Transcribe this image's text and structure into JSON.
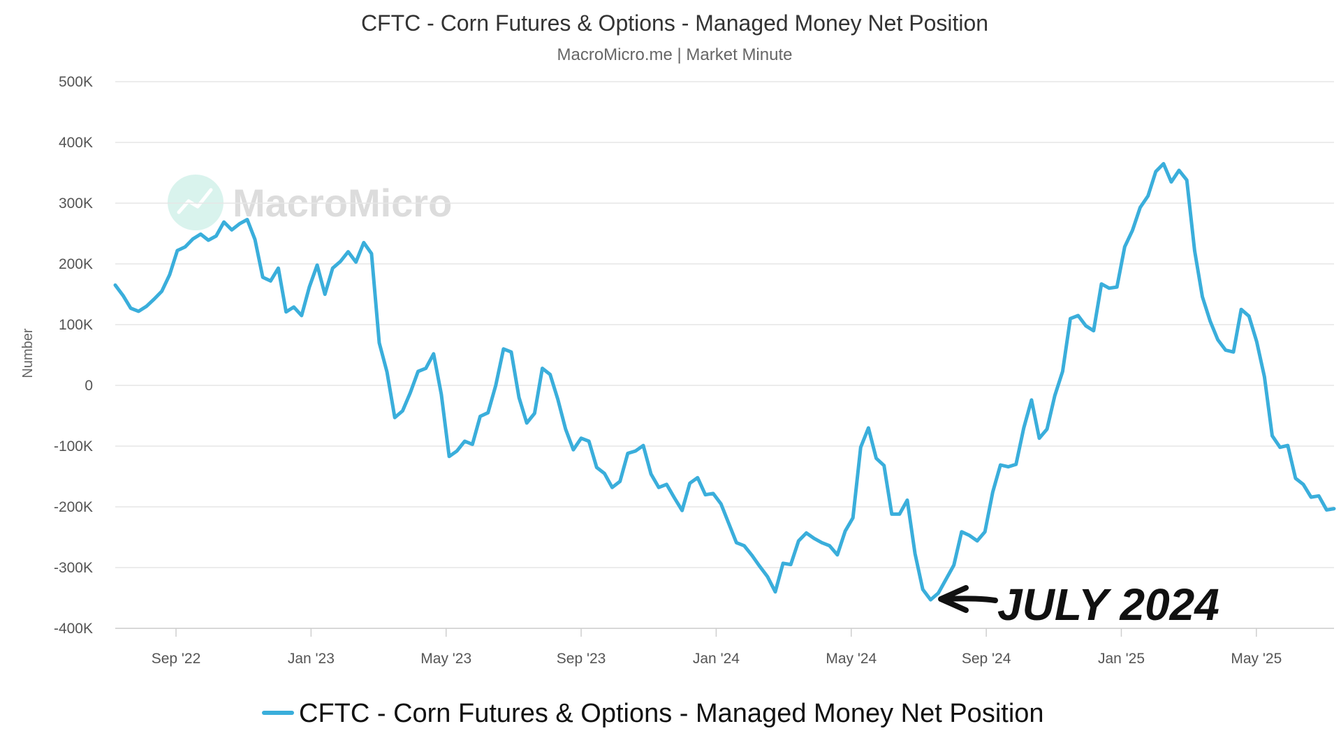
{
  "chart_data": {
    "type": "line",
    "title": "CFTC - Corn Futures & Options - Managed Money Net Position",
    "subtitle": "MacroMicro.me | Market Minute",
    "ylabel": "Number",
    "xlabel": "",
    "ylim": [
      -400000,
      500000
    ],
    "yticks": [
      500000,
      400000,
      300000,
      200000,
      100000,
      0,
      -100000,
      -200000,
      -300000,
      -400000
    ],
    "ytick_labels": [
      "500K",
      "400K",
      "300K",
      "200K",
      "100K",
      "0",
      "-100K",
      "-200K",
      "-300K",
      "-400K"
    ],
    "xlim": [
      0,
      36.1
    ],
    "xticks": [
      1.8,
      5.8,
      9.8,
      13.8,
      17.8,
      21.8,
      25.8,
      29.8,
      33.8
    ],
    "xtick_labels": [
      "Sep '22",
      "Jan '23",
      "May '23",
      "Sep '23",
      "Jan '24",
      "May '24",
      "Sep '24",
      "Jan '25",
      "May '25"
    ],
    "grid": true,
    "legend": "bottom-center",
    "series": [
      {
        "name": "CFTC - Corn Futures & Options - Managed Money Net Position",
        "color": "#3aaedb",
        "start_month": 0,
        "step_months": 0.23,
        "values": [
          165000,
          148000,
          127000,
          122000,
          130000,
          142000,
          155000,
          182000,
          222000,
          228000,
          241000,
          249000,
          239000,
          246000,
          269000,
          256000,
          266000,
          273000,
          240000,
          178000,
          172000,
          193000,
          121000,
          129000,
          115000,
          162000,
          198000,
          150000,
          193000,
          204000,
          220000,
          203000,
          235000,
          217000,
          70000,
          22000,
          -53000,
          -42000,
          -12000,
          23000,
          28000,
          52000,
          -15000,
          -117000,
          -108000,
          -92000,
          -97000,
          -51000,
          -45000,
          0,
          60000,
          55000,
          -20000,
          -62000,
          -46000,
          28000,
          18000,
          -23000,
          -72000,
          -106000,
          -87000,
          -92000,
          -135000,
          -145000,
          -168000,
          -158000,
          -112000,
          -108000,
          -99000,
          -146000,
          -168000,
          -163000,
          -185000,
          -206000,
          -161000,
          -152000,
          -180000,
          -178000,
          -195000,
          -227000,
          -259000,
          -264000,
          -280000,
          -298000,
          -315000,
          -340000,
          -293000,
          -295000,
          -256000,
          -243000,
          -252000,
          -259000,
          -264000,
          -279000,
          -240000,
          -218000,
          -102000,
          -70000,
          -120000,
          -132000,
          -212000,
          -212000,
          -189000,
          -277000,
          -336000,
          -353000,
          -342000,
          -319000,
          -296000,
          -241000,
          -247000,
          -256000,
          -241000,
          -176000,
          -131000,
          -134000,
          -130000,
          -70000,
          -24000,
          -87000,
          -72000,
          -17000,
          23000,
          110000,
          115000,
          98000,
          90000,
          167000,
          160000,
          162000,
          228000,
          255000,
          293000,
          312000,
          352000,
          365000,
          335000,
          354000,
          338000,
          222000,
          146000,
          106000,
          75000,
          58000,
          55000,
          125000,
          114000,
          72000,
          14000,
          -83000,
          -102000,
          -99000,
          -153000,
          -163000,
          -184000,
          -182000,
          -205000,
          -203000
        ]
      }
    ],
    "annotations": [
      {
        "text": "JULY 2024",
        "target_x_month": 24.38,
        "target_value": -350000
      }
    ]
  },
  "watermark": {
    "text": "MacroMicro",
    "icon": "chart-trend-icon"
  }
}
